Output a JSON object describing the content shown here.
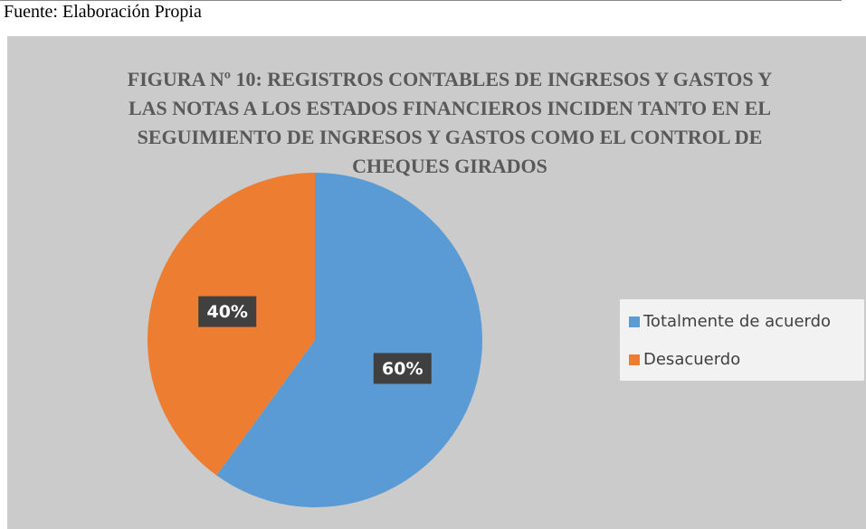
{
  "source": "Fuente: Elaboración Propia",
  "chart_data": {
    "type": "pie",
    "title": "FIGURA Nº 10: REGISTROS CONTABLES DE INGRESOS Y GASTOS Y LAS NOTAS A LOS ESTADOS FINANCIEROS INCIDEN TANTO EN EL SEGUIMIENTO DE INGRESOS Y GASTOS COMO EL CONTROL DE CHEQUES GIRADOS",
    "categories": [
      "Totalmente de acuerdo",
      "Desacuerdo"
    ],
    "values": [
      60,
      40
    ],
    "value_labels": [
      "60%",
      "40%"
    ],
    "colors": [
      "#5b9bd5",
      "#ed7d31"
    ],
    "legend": "right"
  }
}
